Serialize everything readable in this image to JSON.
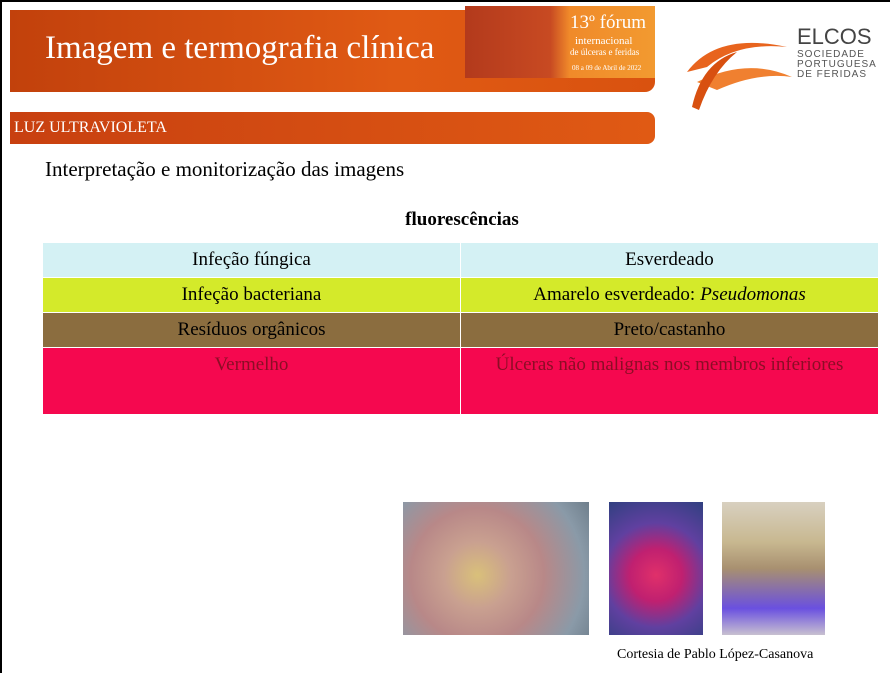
{
  "header": {
    "title": "Imagem e termografia clínica",
    "banner": [
      "13º fórum",
      "internacional",
      "de úlceras e feridas",
      "08 a 09 de Abril de 2022"
    ],
    "logo": {
      "name": "ELCOS",
      "subtitle": "SOCIEDADE PORTUGUESA DE FERIDAS"
    }
  },
  "section": "LUZ ULTRAVIOLETA",
  "subtitle": "Interpretação e monitorização das imagens",
  "table": {
    "title": "fluorescências",
    "rows": [
      [
        "Infeção fúngica",
        "Esverdeado"
      ],
      [
        "Infeção bacteriana",
        "Amarelo esverdeado:",
        "Pseudomonas"
      ],
      [
        "Resíduos orgânicos",
        "Preto/castanho"
      ],
      [
        "Vermelho",
        "Úlceras não malignas nos membros inferiores"
      ]
    ]
  },
  "caption": "Cortesia de Pablo López-Casanova"
}
